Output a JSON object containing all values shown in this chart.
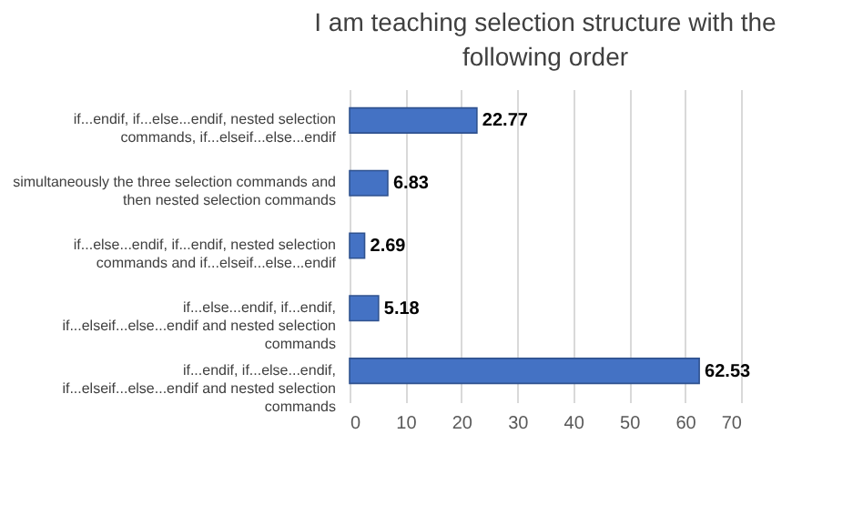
{
  "chart_data": {
    "type": "bar",
    "orientation": "horizontal",
    "title": "I am teaching selection structure with the following order",
    "categories": [
      "if...endif, if...else...endif,  nested selection commands, if...elseif...else...endif",
      "simultaneously the three selection commands and then nested selection commands",
      "if...else...endif, if...endif,  nested selection commands and if...elseif...else...endif",
      "if...else...endif, if...endif, if...elseif...else...endif and nested selection commands",
      "if...endif, if...else...endif, if...elseif...else...endif and nested selection commands"
    ],
    "values": [
      22.77,
      6.83,
      2.69,
      5.18,
      62.53
    ],
    "color": "#4472c4",
    "xlim": [
      0,
      70
    ],
    "xticks": [
      0,
      10,
      20,
      30,
      40,
      50,
      60,
      70
    ],
    "grid": "x",
    "data_labels": true
  }
}
